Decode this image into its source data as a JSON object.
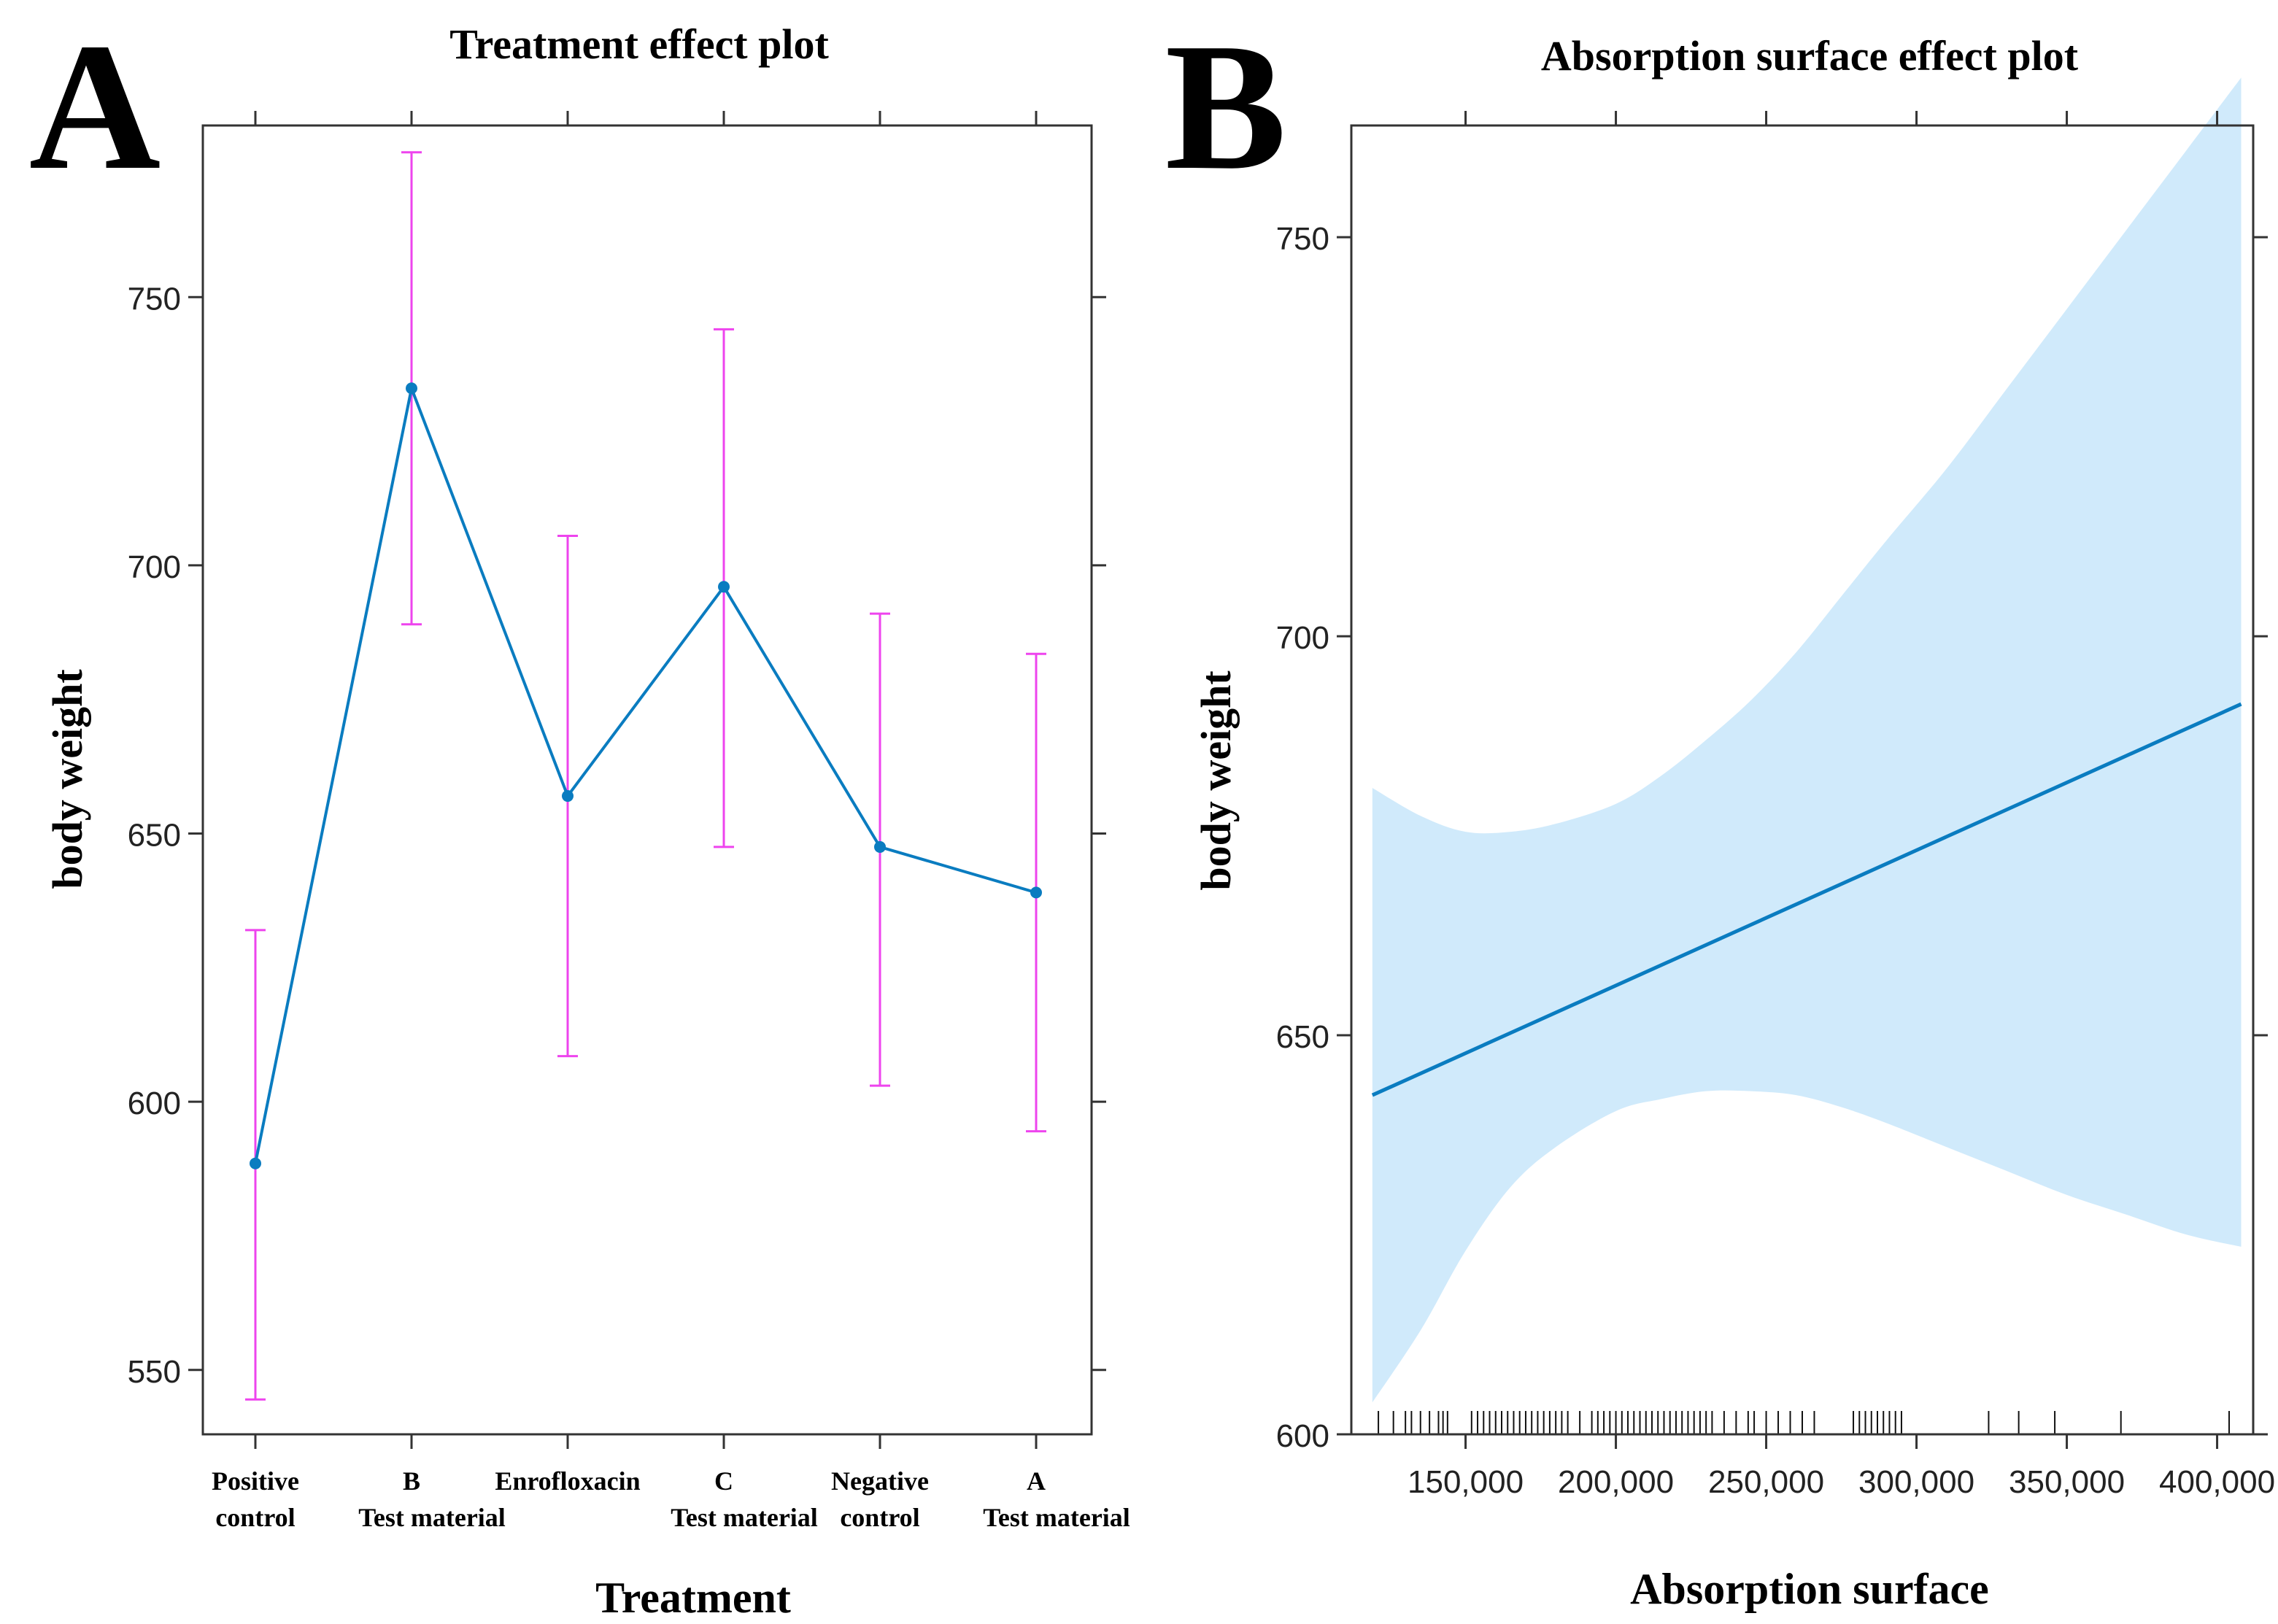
{
  "colors": {
    "line": "#0a7cc0",
    "errorbar": "#ee44ee",
    "band": "#d0eafb",
    "axis": "#333333",
    "rug": "#111111"
  },
  "chart_data": [
    {
      "panel_letter": "A",
      "type": "line",
      "title": "Treatment effect plot",
      "xlabel": "Treatment",
      "ylabel": "body weight",
      "ylim": [
        538,
        782
      ],
      "yticks": [
        550,
        600,
        650,
        700,
        750
      ],
      "categories": [
        {
          "line1": "Positive",
          "line2": "control"
        },
        {
          "line1": "B",
          "line2": "Test material"
        },
        {
          "line1": "Enrofloxacin",
          "line2": ""
        },
        {
          "line1": "C",
          "line2": "Test material"
        },
        {
          "line1": "Negative",
          "line2": "control"
        },
        {
          "line1": "A",
          "line2": "Test material"
        }
      ],
      "series": [
        {
          "name": "fit",
          "values": [
            588.5,
            733,
            657,
            696,
            647.5,
            639
          ],
          "lower": [
            544.5,
            689,
            608.5,
            647.5,
            603,
            594.5
          ],
          "upper": [
            632,
            777,
            705.5,
            744,
            691,
            683.5
          ]
        }
      ]
    },
    {
      "panel_letter": "B",
      "type": "line",
      "title": "Absorption surface effect plot",
      "xlabel": "Absorption surface",
      "ylabel": "body weight",
      "xlim": [
        112000,
        412000
      ],
      "ylim": [
        600,
        764
      ],
      "xticks": [
        150000,
        200000,
        250000,
        300000,
        350000,
        400000
      ],
      "xtick_labels": [
        "150,000",
        "200,000",
        "250,000",
        "300,000",
        "350,000",
        "400,000"
      ],
      "yticks": [
        600,
        650,
        700,
        750
      ],
      "fit": {
        "x": [
          119000,
          408000
        ],
        "y": [
          642.5,
          691.5
        ]
      },
      "band": {
        "x": [
          119000,
          135000,
          150000,
          165000,
          180000,
          200000,
          215000,
          230000,
          245000,
          260000,
          275000,
          290000,
          310000,
          330000,
          350000,
          370000,
          390000,
          408000
        ],
        "lower": [
          604,
          613,
          623,
          631,
          636,
          640.5,
          642,
          643,
          643,
          642.5,
          641,
          639,
          636,
          633,
          630,
          627.5,
          625,
          623.5
        ],
        "upper": [
          681,
          677.5,
          675.5,
          675.5,
          676.5,
          679,
          682.5,
          687,
          692,
          698,
          705,
          712,
          721,
          731,
          741,
          751,
          761,
          770
        ]
      },
      "rug": [
        121000,
        126000,
        130000,
        132000,
        135000,
        138000,
        141000,
        142500,
        144000,
        152000,
        154000,
        156000,
        158000,
        160000,
        162000,
        164000,
        166000,
        168000,
        170000,
        172000,
        174000,
        176000,
        178000,
        180000,
        182000,
        184000,
        188000,
        192000,
        194000,
        196000,
        198000,
        200000,
        202000,
        204000,
        206000,
        208000,
        210000,
        212000,
        214000,
        216000,
        218000,
        220000,
        222000,
        224000,
        226000,
        228000,
        230000,
        232000,
        236000,
        240000,
        244000,
        246000,
        250000,
        254000,
        258000,
        262000,
        266000,
        279000,
        281000,
        283000,
        285000,
        287000,
        289000,
        291000,
        293000,
        295000,
        324000,
        334000,
        346000,
        368000,
        404000
      ]
    }
  ]
}
